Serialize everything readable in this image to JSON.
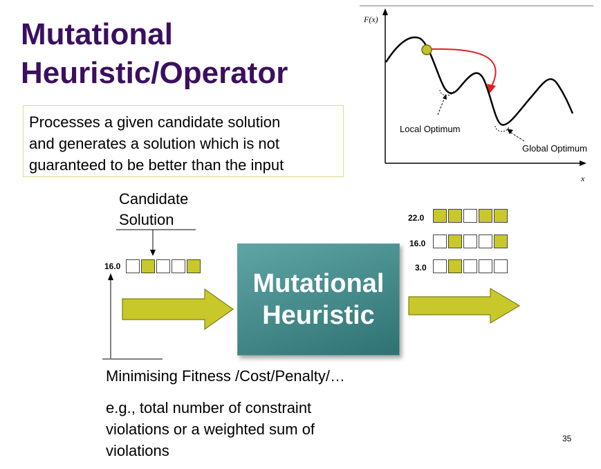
{
  "title": {
    "line1": "Mutational",
    "line2": "Heuristic/Operator"
  },
  "description": {
    "lines": [
      "Processes a given candidate solution",
      "and generates a solution which is not",
      "guaranteed to be better than the input"
    ]
  },
  "candidate": {
    "line1": "Candidate",
    "line2": "Solution"
  },
  "input_solution": {
    "fitness": "16.0",
    "bits": [
      0,
      1,
      0,
      0,
      1
    ]
  },
  "operator_box": {
    "line1": "Mutational",
    "line2": "Heuristic"
  },
  "output_solutions": [
    {
      "fitness": "22.0",
      "bits": [
        1,
        1,
        0,
        1,
        1
      ]
    },
    {
      "fitness": "16.0",
      "bits": [
        0,
        1,
        0,
        0,
        1
      ]
    },
    {
      "fitness": "3.0",
      "bits": [
        0,
        1,
        0,
        0,
        0
      ]
    }
  ],
  "fitness_text": "Minimising Fitness /Cost/Penalty/…",
  "example_lines": [
    "e.g., total number of constraint",
    "violations or a weighted sum of",
    "violations"
  ],
  "graph": {
    "y_axis_label": "F(x)",
    "x_axis_label": "x",
    "local_label": "Local Optimum",
    "global_label": "Global Optimum"
  },
  "colors": {
    "title": "#3b0f5f",
    "arrow_fill": "#c9c82b",
    "box": "#3f8586",
    "red_arrow": "#e0201c"
  },
  "page_number": "35"
}
